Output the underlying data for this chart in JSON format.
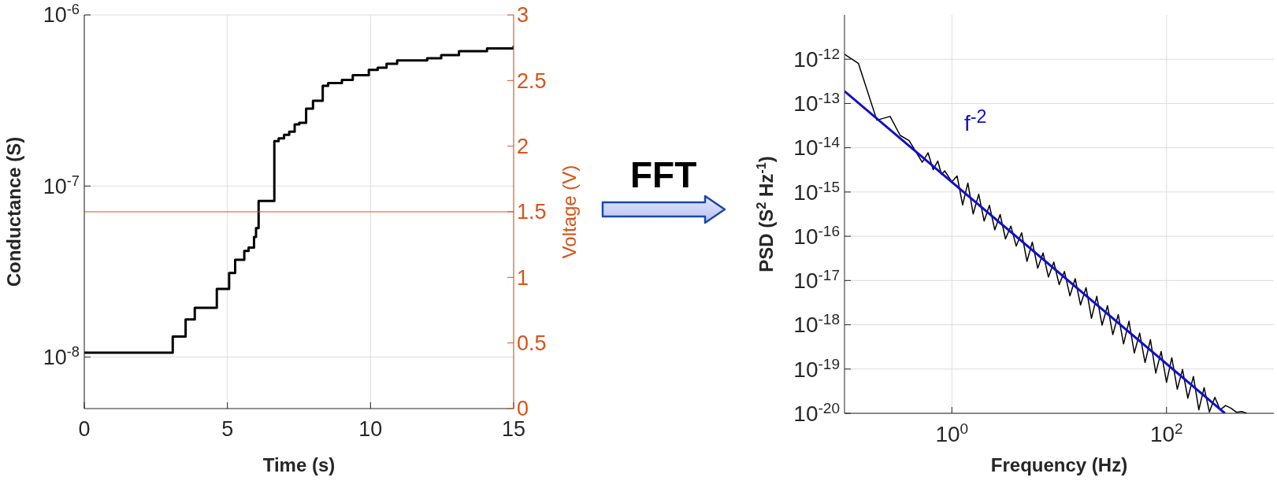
{
  "chart_data": [
    {
      "type": "step",
      "xlabel": "Time (s)",
      "ylabel": "Conductance (S)",
      "y2label": "Voltage (V)",
      "log": "y",
      "grid": true,
      "xlim": [
        0,
        15
      ],
      "xticks": [
        0,
        5,
        10,
        15
      ],
      "ylim": [
        5e-09,
        1e-06
      ],
      "yticks": [
        {
          "value": 1e-08,
          "label": "10$^{-8}$"
        },
        {
          "value": 1e-07,
          "label": "10$^{-7}$"
        },
        {
          "value": 1e-06,
          "label": "10$^{-6}$"
        }
      ],
      "y2lim": [
        0,
        3
      ],
      "y2ticks": [
        0,
        0.5,
        1,
        1.5,
        2,
        2.5,
        3
      ],
      "series": [
        {
          "type": "step",
          "color": "#000000",
          "x": [
            0,
            3.09,
            3.54,
            3.86,
            4.63,
            5.06,
            5.27,
            5.59,
            5.74,
            5.93,
            6.0,
            6.09,
            6.64,
            6.79,
            6.98,
            7.16,
            7.35,
            7.51,
            7.75,
            7.99,
            8.33,
            8.52,
            9.0,
            9.38,
            9.94,
            10.25,
            10.56,
            10.93,
            11.98,
            12.47,
            13.09,
            14.07,
            15
          ],
          "values": [
            1.06e-08,
            1.32e-08,
            1.66e-08,
            1.94e-08,
            2.5e-08,
            3.1e-08,
            3.7e-08,
            4.17e-08,
            4.37e-08,
            5.04e-08,
            5.67e-08,
            8.17e-08,
            1.83e-07,
            1.9e-07,
            1.99e-07,
            2.08e-07,
            2.29e-07,
            2.34e-07,
            2.83e-07,
            3.15e-07,
            3.85e-07,
            4e-07,
            4.17e-07,
            4.44e-07,
            4.77e-07,
            4.92e-07,
            5.19e-07,
            5.43e-07,
            5.58e-07,
            5.83e-07,
            6.15e-07,
            6.38e-07,
            6.62e-07
          ]
        },
        {
          "type": "line",
          "axis": "y2",
          "color": "#d95319",
          "x": [
            0,
            15
          ],
          "values": [
            1.5,
            1.5
          ]
        }
      ]
    },
    {
      "type": "other",
      "title": "FFT"
    },
    {
      "type": "line",
      "xlabel": "Frequency (Hz)",
      "ylabel": "PSD (S$^{2}$ Hz$^{-1}$)",
      "log": "xy",
      "grid": true,
      "xlim": [
        0.1,
        1000
      ],
      "xticks": [
        {
          "value": 1,
          "label": "10$^{0}$"
        },
        {
          "value": 100,
          "label": "10$^{2}$"
        }
      ],
      "ylim": [
        1e-20,
        1e-11
      ],
      "yticks": [
        {
          "value": 1e-20,
          "label": "10$^{-20}$"
        },
        {
          "value": 1e-19,
          "label": "10$^{-19}$"
        },
        {
          "value": 1e-18,
          "label": "10$^{-18}$"
        },
        {
          "value": 1e-17,
          "label": "10$^{-17}$"
        },
        {
          "value": 1e-16,
          "label": "10$^{-16}$"
        },
        {
          "value": 1e-15,
          "label": "10$^{-15}$"
        },
        {
          "value": 1e-14,
          "label": "10$^{-14}$"
        },
        {
          "value": 1e-13,
          "label": "10$^{-13}$"
        },
        {
          "value": 1e-12,
          "label": "10$^{-12}$"
        }
      ],
      "annotations": [
        "f$^{-2}$"
      ],
      "series": [
        {
          "type": "line",
          "color": "#000000",
          "x": [
            0.1,
            0.135,
            0.2,
            0.266,
            0.33,
            0.4,
            0.53,
            0.6,
            0.67,
            0.74,
            0.8,
            0.86,
            1,
            1.12,
            1.26,
            1.41,
            1.58,
            1.78,
            2.0,
            2.24,
            2.51,
            2.82,
            3.16,
            3.55,
            3.98,
            4.47,
            5.01,
            5.62,
            6.31,
            7.08,
            7.94,
            8.91,
            10,
            11.2,
            12.6,
            14.1,
            15.8,
            17.8,
            20,
            22.4,
            25.1,
            28.2,
            31.6,
            35.5,
            39.8,
            44.7,
            50.1,
            56.2,
            63.1,
            70.8,
            79.4,
            89.1,
            100,
            112,
            126,
            141,
            158,
            178,
            200,
            224,
            251,
            282,
            316,
            355,
            400,
            450,
            500,
            560
          ],
          "values": [
            1.3e-12,
            8e-13,
            4.2e-14,
            5.1e-14,
            1.9e-14,
            1.45e-14,
            4.7e-15,
            7.7e-15,
            3.2e-15,
            5e-15,
            2.5e-15,
            3e-15,
            1.7e-15,
            2.3e-15,
            5.1e-16,
            1.6e-15,
            3.2e-16,
            8.9e-16,
            2.2e-16,
            5e-16,
            1.4e-16,
            3.1e-16,
            8.7e-17,
            1.7e-16,
            6e-17,
            1.2e-16,
            2.7e-17,
            7.4e-17,
            1.9e-17,
            4.2e-17,
            1.2e-17,
            2.6e-17,
            8.1e-18,
            1.6e-17,
            4.5e-18,
            1.1e-17,
            2.8e-18,
            6.9e-18,
            1.4e-18,
            4.4e-18,
            9.8e-19,
            2.7e-18,
            6e-19,
            1.7e-18,
            3.7e-19,
            1.2e-18,
            2.3e-19,
            6.5e-19,
            1.4e-19,
            4.6e-19,
            8.1e-20,
            2.5e-19,
            5e-20,
            1.8e-19,
            3.5e-20,
            9.8e-20,
            2.2e-20,
            6.8e-20,
            1.2e-20,
            3.8e-20,
            1.07e-20,
            2.3e-20,
            1.2e-20,
            1.5e-20,
            1.3e-20,
            1.05e-20,
            1.1e-20,
            1e-20
          ]
        },
        {
          "type": "line",
          "color": "#1010cc",
          "x": [
            0.1,
            350
          ],
          "values": [
            1.9e-13,
            1e-20
          ]
        }
      ]
    }
  ]
}
